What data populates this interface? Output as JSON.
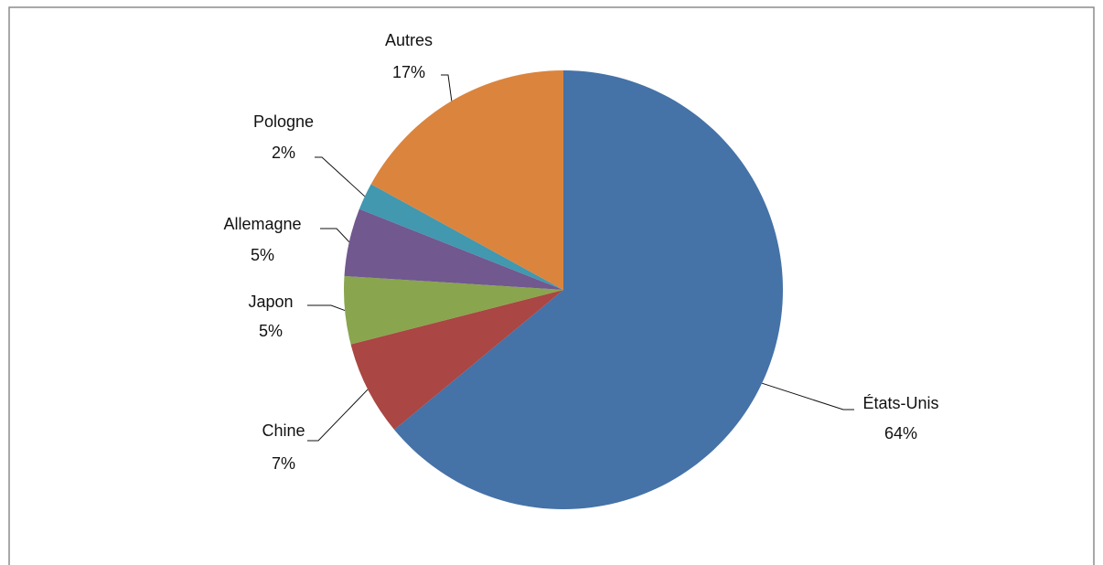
{
  "chart_data": {
    "type": "pie",
    "categories": [
      "États-Unis",
      "Chine",
      "Japon",
      "Allemagne",
      "Pologne",
      "Autres"
    ],
    "values": [
      64,
      7,
      5,
      5,
      2,
      17
    ],
    "value_labels": [
      "64%",
      "7%",
      "5%",
      "5%",
      "2%",
      "17%"
    ],
    "colors": [
      "#4572a7",
      "#aa4643",
      "#89a54e",
      "#71588f",
      "#4198af",
      "#db843d"
    ]
  }
}
